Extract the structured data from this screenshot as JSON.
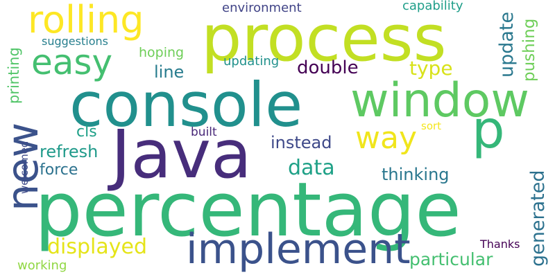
{
  "word_cloud": {
    "background": "#ffffff",
    "words": [
      {
        "text": "percentage",
        "color": "#35b779",
        "rotate": false
      },
      {
        "text": "console",
        "color": "#21908d",
        "rotate": false
      },
      {
        "text": "process",
        "color": "#c2df23",
        "rotate": false
      },
      {
        "text": "Java",
        "color": "#472d7b",
        "rotate": false
      },
      {
        "text": "window",
        "color": "#5ec962",
        "rotate": false
      },
      {
        "text": "implement",
        "color": "#3b528b",
        "rotate": false
      },
      {
        "text": "new",
        "color": "#3b528b",
        "rotate": true
      },
      {
        "text": "rolling",
        "color": "#fde725",
        "rotate": false
      },
      {
        "text": "easy",
        "color": "#44bf70",
        "rotate": false
      },
      {
        "text": "p",
        "color": "#35b779",
        "rotate": false
      },
      {
        "text": "way",
        "color": "#f0e51c",
        "rotate": false
      },
      {
        "text": "double",
        "color": "#440154",
        "rotate": false
      },
      {
        "text": "type",
        "color": "#d8e219",
        "rotate": false
      },
      {
        "text": "line",
        "color": "#287c8e",
        "rotate": false
      },
      {
        "text": "data",
        "color": "#1fa187",
        "rotate": false
      },
      {
        "text": "displayed",
        "color": "#e5e419",
        "rotate": false
      },
      {
        "text": "particular",
        "color": "#44bf70",
        "rotate": false
      },
      {
        "text": "generated",
        "color": "#2c718e",
        "rotate": true
      },
      {
        "text": "update",
        "color": "#2a788e",
        "rotate": true
      },
      {
        "text": "pushing",
        "color": "#6ece58",
        "rotate": true
      },
      {
        "text": "refresh",
        "color": "#1f9a8a",
        "rotate": false
      },
      {
        "text": "force",
        "color": "#2c728e",
        "rotate": false
      },
      {
        "text": "instead",
        "color": "#3e4989",
        "rotate": false
      },
      {
        "text": "thinking",
        "color": "#2a778e",
        "rotate": false
      },
      {
        "text": "cls",
        "color": "#1fa088",
        "rotate": false
      },
      {
        "text": "printing",
        "color": "#52c569",
        "rotate": true
      },
      {
        "text": "hoping",
        "color": "#6ece58",
        "rotate": false
      },
      {
        "text": "updating",
        "color": "#21918c",
        "rotate": false
      },
      {
        "text": "environment",
        "color": "#414487",
        "rotate": false
      },
      {
        "text": "capability",
        "color": "#1f9e89",
        "rotate": false
      },
      {
        "text": "suggestions",
        "color": "#277f8e",
        "rotate": false
      },
      {
        "text": "built",
        "color": "#482878",
        "rotate": false
      },
      {
        "text": "sort",
        "color": "#f4e61e",
        "rotate": false
      },
      {
        "text": "welcomed",
        "color": "#3e4a89",
        "rotate": true
      },
      {
        "text": "Thanks",
        "color": "#440154",
        "rotate": false
      },
      {
        "text": "working",
        "color": "#90d743",
        "rotate": false
      }
    ]
  }
}
